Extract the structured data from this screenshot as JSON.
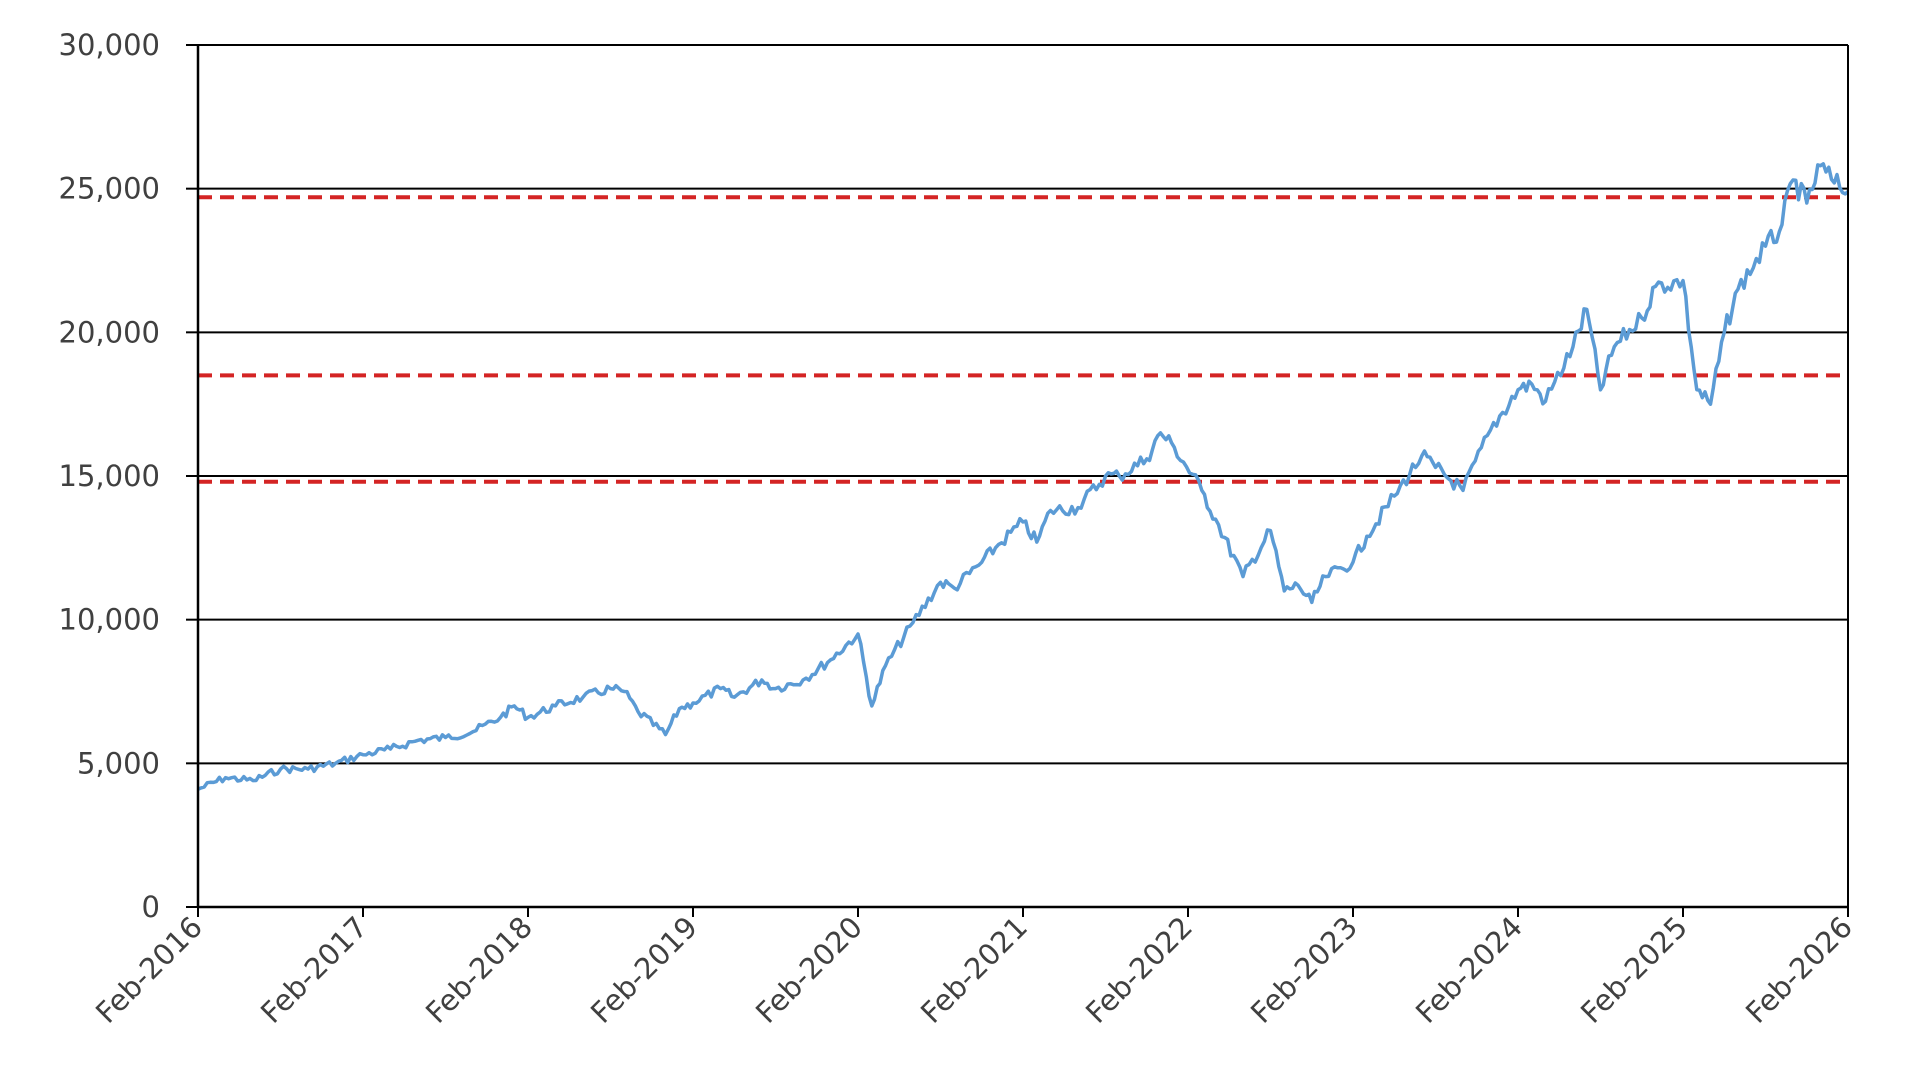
{
  "chart_data": {
    "type": "line",
    "title": "",
    "xlabel": "",
    "ylabel": "",
    "ylim": [
      0,
      30000
    ],
    "xlim": [
      "2016-02",
      "2026-02"
    ],
    "grid": "horizontal",
    "legend": "none",
    "y_ticks": [
      0,
      5000,
      10000,
      15000,
      20000,
      25000,
      30000
    ],
    "y_tick_labels": [
      "0",
      "5,000",
      "10,000",
      "15,000",
      "20,000",
      "25,000",
      "30,000"
    ],
    "x_ticks": [
      "2016-02",
      "2017-02",
      "2018-02",
      "2019-02",
      "2020-02",
      "2021-02",
      "2022-02",
      "2023-02",
      "2024-02",
      "2025-02",
      "2026-02"
    ],
    "x_tick_labels": [
      "Feb-2016",
      "Feb-2017",
      "Feb-2018",
      "Feb-2019",
      "Feb-2020",
      "Feb-2021",
      "Feb-2022",
      "Feb-2023",
      "Feb-2024",
      "Feb-2025",
      "Feb-2026"
    ],
    "reference_lines": [
      {
        "y": 24700,
        "color": "#d42424",
        "style": "dashed"
      },
      {
        "y": 18500,
        "color": "#d42424",
        "style": "dashed"
      },
      {
        "y": 14800,
        "color": "#d42424",
        "style": "dashed"
      }
    ],
    "series": [
      {
        "color": "#5b9bd5",
        "x": [
          "2016-02",
          "2016-04",
          "2016-06",
          "2016-08",
          "2016-10",
          "2016-12",
          "2017-02",
          "2017-04",
          "2017-06",
          "2017-08",
          "2017-10",
          "2017-12",
          "2018-01",
          "2018-02",
          "2018-04",
          "2018-06",
          "2018-08",
          "2018-09",
          "2018-10",
          "2018-12",
          "2019-01",
          "2019-02",
          "2019-04",
          "2019-05",
          "2019-07",
          "2019-08",
          "2019-10",
          "2019-12",
          "2020-02",
          "2020-03",
          "2020-04",
          "2020-06",
          "2020-08",
          "2020-09",
          "2020-11",
          "2020-12",
          "2021-02",
          "2021-03",
          "2021-04",
          "2021-06",
          "2021-08",
          "2021-09",
          "2021-11",
          "2021-12",
          "2022-01",
          "2022-03",
          "2022-04",
          "2022-06",
          "2022-08",
          "2022-09",
          "2022-10",
          "2022-11",
          "2022-12",
          "2023-02",
          "2023-03",
          "2023-05",
          "2023-07",
          "2023-08",
          "2023-10",
          "2023-12",
          "2024-02",
          "2024-03",
          "2024-04",
          "2024-06",
          "2024-07",
          "2024-08",
          "2024-09",
          "2024-11",
          "2024-12",
          "2025-02",
          "2025-03",
          "2025-04",
          "2025-05",
          "2025-06",
          "2025-08",
          "2025-09",
          "2025-10",
          "2025-11",
          "2025-12",
          "2026-01",
          "2026-02"
        ],
        "y": [
          4100,
          4500,
          4400,
          4800,
          4800,
          5000,
          5300,
          5500,
          5800,
          5900,
          6100,
          6600,
          7000,
          6600,
          7000,
          7300,
          7600,
          7500,
          6800,
          6000,
          6900,
          7100,
          7600,
          7300,
          7900,
          7600,
          7900,
          8600,
          9500,
          7000,
          8400,
          9900,
          11300,
          11100,
          12000,
          12500,
          13400,
          12700,
          13800,
          13900,
          15000,
          15000,
          15600,
          16500,
          16000,
          14500,
          13500,
          11500,
          13100,
          11000,
          11200,
          10600,
          11500,
          12000,
          12900,
          14300,
          15700,
          15300,
          14500,
          16600,
          18000,
          18200,
          17600,
          19500,
          20800,
          18000,
          19500,
          20500,
          21600,
          21800,
          18000,
          17500,
          20000,
          21500,
          23000,
          23500,
          25300,
          24500,
          25800,
          25200,
          24900
        ]
      }
    ]
  }
}
